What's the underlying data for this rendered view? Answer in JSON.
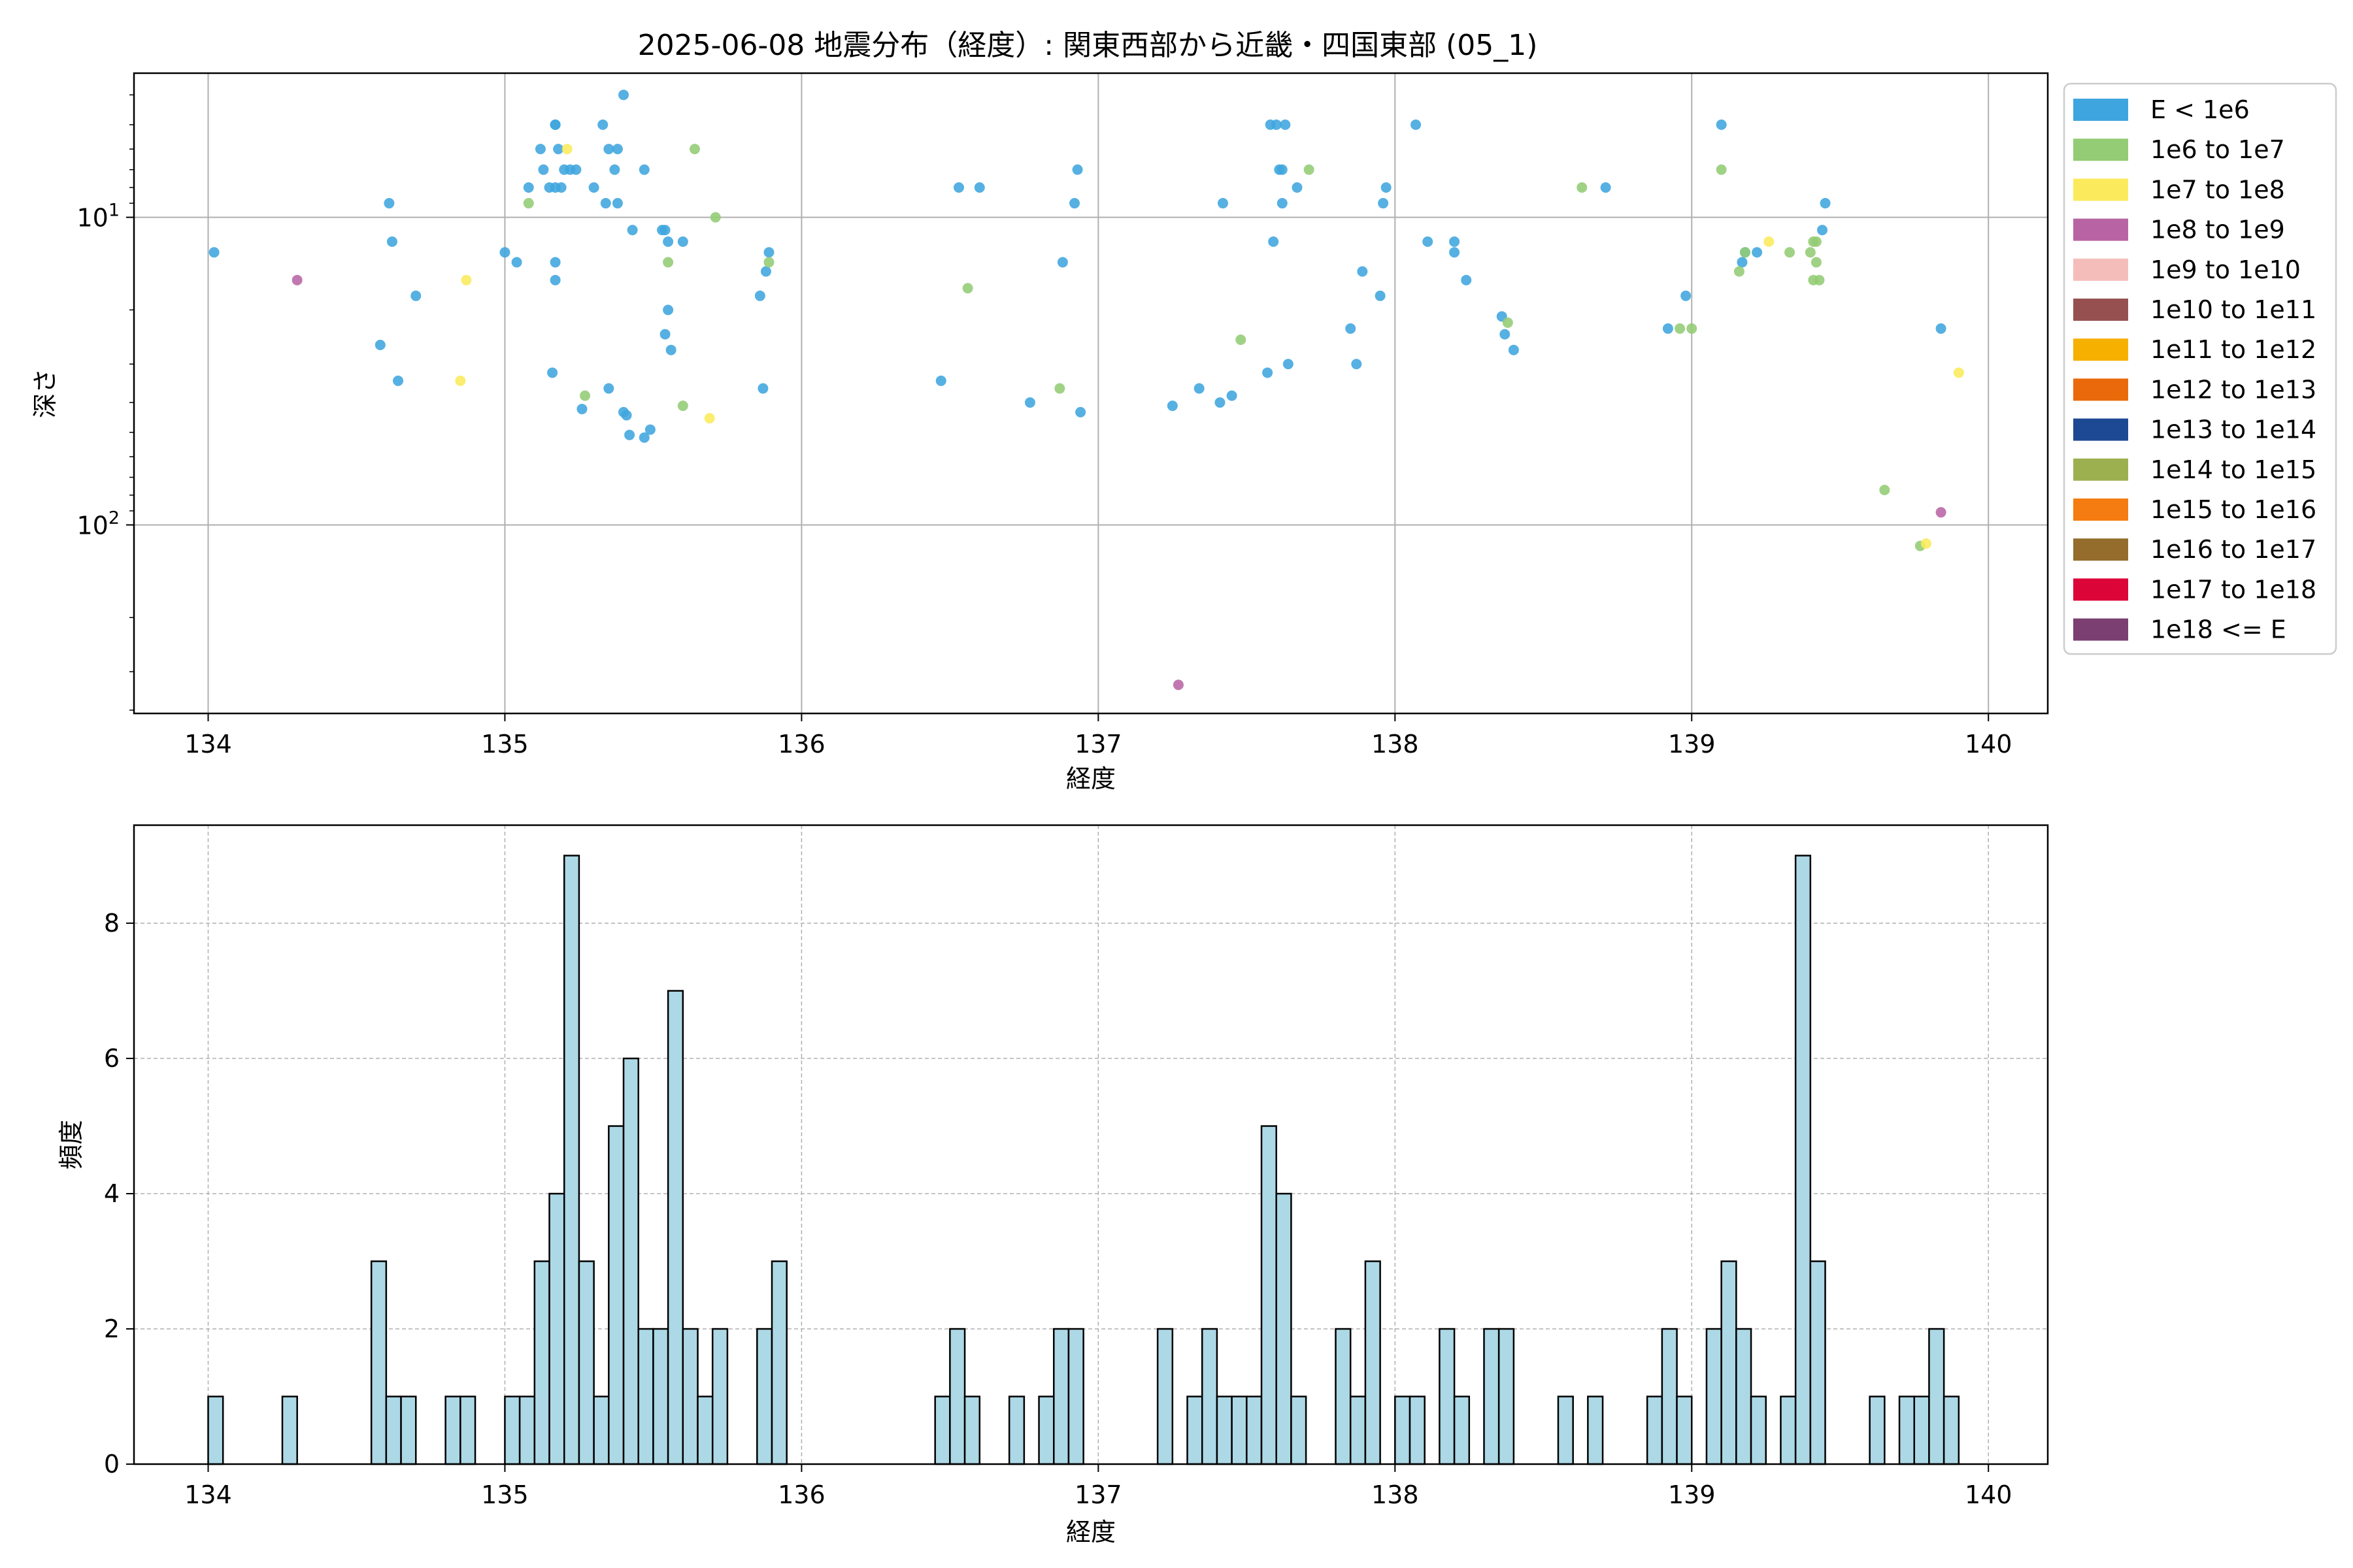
{
  "figure": {
    "title": "2025-06-08 地震分布（経度）: 関東西部から近畿・四国東部 (05_1)"
  },
  "chart_data": [
    {
      "type": "scatter",
      "title": "2025-06-08 地震分布（経度）: 関東西部から近畿・四国東部 (05_1)",
      "xlabel": "経度",
      "ylabel": "深さ",
      "xlim": [
        133.75,
        140.2
      ],
      "ylim": [
        410,
        3.4
      ],
      "yscale": "log",
      "y_inverted": true,
      "x_ticks": [
        "134",
        "135",
        "136",
        "137",
        "138",
        "139",
        "140"
      ],
      "y_ticks": [
        "10^1",
        "10^2"
      ],
      "grid": true,
      "legend_position": "outside-right",
      "legend": [
        {
          "label": "E < 1e6",
          "color": "#3fa5de"
        },
        {
          "label": "1e6 to 1e7",
          "color": "#93cc74"
        },
        {
          "label": "1e7 to 1e8",
          "color": "#fbeb5c"
        },
        {
          "label": "1e8 to 1e9",
          "color": "#b864a4"
        },
        {
          "label": "1e9 to 1e10",
          "color": "#f4bdba"
        },
        {
          "label": "1e10 to 1e11",
          "color": "#965050"
        },
        {
          "label": "1e11 to 1e12",
          "color": "#f6b000"
        },
        {
          "label": "1e12 to 1e13",
          "color": "#ea6a0b"
        },
        {
          "label": "1e13 to 1e14",
          "color": "#1d4893"
        },
        {
          "label": "1e14 to 1e15",
          "color": "#9cb050"
        },
        {
          "label": "1e15 to 1e16",
          "color": "#f47c10"
        },
        {
          "label": "1e16 to 1e17",
          "color": "#946c2c"
        },
        {
          "label": "1e17 to 1e18",
          "color": "#dc0538"
        },
        {
          "label": "1e18 <= E",
          "color": "#7b3f71"
        }
      ],
      "series": [
        {
          "name": "E < 1e6",
          "points": [
            [
              134.02,
              13
            ],
            [
              134.58,
              26
            ],
            [
              134.61,
              9
            ],
            [
              134.62,
              12
            ],
            [
              134.64,
              34
            ],
            [
              134.7,
              18
            ],
            [
              135.0,
              13
            ],
            [
              135.04,
              14
            ],
            [
              135.08,
              8
            ],
            [
              135.12,
              6
            ],
            [
              135.13,
              7
            ],
            [
              135.15,
              8
            ],
            [
              135.16,
              32
            ],
            [
              135.17,
              5
            ],
            [
              135.17,
              5
            ],
            [
              135.17,
              8
            ],
            [
              135.17,
              14
            ],
            [
              135.17,
              16
            ],
            [
              135.18,
              6
            ],
            [
              135.19,
              8
            ],
            [
              135.2,
              7
            ],
            [
              135.22,
              7
            ],
            [
              135.24,
              7
            ],
            [
              135.26,
              42
            ],
            [
              135.3,
              8
            ],
            [
              135.33,
              5
            ],
            [
              135.34,
              9
            ],
            [
              135.35,
              36
            ],
            [
              135.35,
              6
            ],
            [
              135.37,
              7
            ],
            [
              135.38,
              9
            ],
            [
              135.38,
              6
            ],
            [
              135.4,
              4
            ],
            [
              135.4,
              43
            ],
            [
              135.41,
              44
            ],
            [
              135.42,
              51
            ],
            [
              135.43,
              11
            ],
            [
              135.47,
              7
            ],
            [
              135.47,
              52
            ],
            [
              135.49,
              49
            ],
            [
              135.53,
              11
            ],
            [
              135.54,
              11
            ],
            [
              135.54,
              24
            ],
            [
              135.55,
              12
            ],
            [
              135.55,
              20
            ],
            [
              135.56,
              27
            ],
            [
              135.6,
              12
            ],
            [
              135.86,
              18
            ],
            [
              135.87,
              36
            ],
            [
              135.88,
              15
            ],
            [
              135.89,
              13
            ],
            [
              136.47,
              34
            ],
            [
              136.53,
              8
            ],
            [
              136.6,
              8
            ],
            [
              136.77,
              40
            ],
            [
              136.88,
              14
            ],
            [
              136.92,
              9
            ],
            [
              136.93,
              7
            ],
            [
              136.94,
              43
            ],
            [
              137.25,
              41
            ],
            [
              137.34,
              36
            ],
            [
              137.41,
              40
            ],
            [
              137.42,
              9
            ],
            [
              137.45,
              38
            ],
            [
              137.57,
              32
            ],
            [
              137.58,
              5
            ],
            [
              137.59,
              12
            ],
            [
              137.6,
              5
            ],
            [
              137.61,
              7
            ],
            [
              137.62,
              7
            ],
            [
              137.62,
              9
            ],
            [
              137.63,
              5
            ],
            [
              137.64,
              30
            ],
            [
              137.67,
              8
            ],
            [
              137.85,
              23
            ],
            [
              137.87,
              30
            ],
            [
              137.89,
              15
            ],
            [
              137.95,
              18
            ],
            [
              137.96,
              9
            ],
            [
              137.97,
              8
            ],
            [
              138.07,
              5
            ],
            [
              138.11,
              12
            ],
            [
              138.2,
              12
            ],
            [
              138.2,
              13
            ],
            [
              138.24,
              16
            ],
            [
              138.36,
              21
            ],
            [
              138.37,
              24
            ],
            [
              138.4,
              27
            ],
            [
              138.71,
              8
            ],
            [
              138.92,
              23
            ],
            [
              138.98,
              18
            ],
            [
              139.1,
              5
            ],
            [
              139.17,
              14
            ],
            [
              139.18,
              13
            ],
            [
              139.22,
              13
            ],
            [
              139.44,
              11
            ],
            [
              139.45,
              9
            ],
            [
              139.84,
              23
            ]
          ]
        },
        {
          "name": "1e6 to 1e7",
          "points": [
            [
              135.08,
              9
            ],
            [
              135.27,
              38
            ],
            [
              135.55,
              14
            ],
            [
              135.6,
              41
            ],
            [
              135.64,
              6
            ],
            [
              135.71,
              10
            ],
            [
              135.89,
              14
            ],
            [
              136.56,
              17
            ],
            [
              136.87,
              36
            ],
            [
              137.48,
              25
            ],
            [
              137.71,
              7
            ],
            [
              138.38,
              22
            ],
            [
              138.63,
              8
            ],
            [
              138.96,
              23
            ],
            [
              139.0,
              23
            ],
            [
              139.1,
              7
            ],
            [
              139.16,
              15
            ],
            [
              139.18,
              13
            ],
            [
              139.33,
              13
            ],
            [
              139.4,
              13
            ],
            [
              139.41,
              16
            ],
            [
              139.41,
              12
            ],
            [
              139.42,
              12
            ],
            [
              139.42,
              14
            ],
            [
              139.43,
              16
            ],
            [
              139.65,
              77
            ],
            [
              139.77,
              117
            ]
          ]
        },
        {
          "name": "1e7 to 1e8",
          "points": [
            [
              134.85,
              34
            ],
            [
              134.87,
              16
            ],
            [
              135.21,
              6
            ],
            [
              135.69,
              45
            ],
            [
              139.26,
              12
            ],
            [
              139.79,
              115
            ],
            [
              139.9,
              32
            ]
          ]
        },
        {
          "name": "1e8 to 1e9",
          "points": [
            [
              134.3,
              16
            ],
            [
              137.27,
              331
            ],
            [
              139.84,
              91
            ]
          ]
        }
      ]
    },
    {
      "type": "bar",
      "title": "",
      "xlabel": "経度",
      "ylabel": "頻度",
      "xlim": [
        133.75,
        140.2
      ],
      "ylim": [
        0,
        9.45
      ],
      "x_ticks": [
        "134",
        "135",
        "136",
        "137",
        "138",
        "139",
        "140"
      ],
      "y_ticks": [
        "0",
        "2",
        "4",
        "6",
        "8"
      ],
      "grid": true,
      "bar_color": "#add8e6",
      "edge_color": "#000000",
      "bin_width": 0.05,
      "bins": [
        [
          134.0,
          1
        ],
        [
          134.25,
          1
        ],
        [
          134.55,
          3
        ],
        [
          134.6,
          1
        ],
        [
          134.65,
          1
        ],
        [
          134.8,
          1
        ],
        [
          134.85,
          1
        ],
        [
          135.0,
          1
        ],
        [
          135.05,
          1
        ],
        [
          135.1,
          3
        ],
        [
          135.15,
          4
        ],
        [
          135.2,
          9
        ],
        [
          135.25,
          3
        ],
        [
          135.3,
          1
        ],
        [
          135.35,
          5
        ],
        [
          135.4,
          6
        ],
        [
          135.45,
          2
        ],
        [
          135.5,
          2
        ],
        [
          135.55,
          7
        ],
        [
          135.6,
          2
        ],
        [
          135.65,
          1
        ],
        [
          135.7,
          2
        ],
        [
          135.85,
          2
        ],
        [
          135.9,
          3
        ],
        [
          136.45,
          1
        ],
        [
          136.5,
          2
        ],
        [
          136.55,
          1
        ],
        [
          136.7,
          1
        ],
        [
          136.8,
          1
        ],
        [
          136.85,
          2
        ],
        [
          136.9,
          2
        ],
        [
          137.2,
          2
        ],
        [
          137.3,
          1
        ],
        [
          137.35,
          2
        ],
        [
          137.4,
          1
        ],
        [
          137.45,
          1
        ],
        [
          137.5,
          1
        ],
        [
          137.55,
          5
        ],
        [
          137.6,
          4
        ],
        [
          137.65,
          1
        ],
        [
          137.8,
          2
        ],
        [
          137.85,
          1
        ],
        [
          137.9,
          3
        ],
        [
          138.0,
          1
        ],
        [
          138.05,
          1
        ],
        [
          138.15,
          2
        ],
        [
          138.2,
          1
        ],
        [
          138.3,
          2
        ],
        [
          138.35,
          2
        ],
        [
          138.55,
          1
        ],
        [
          138.65,
          1
        ],
        [
          138.85,
          1
        ],
        [
          138.9,
          2
        ],
        [
          138.95,
          1
        ],
        [
          139.05,
          2
        ],
        [
          139.1,
          3
        ],
        [
          139.15,
          2
        ],
        [
          139.2,
          1
        ],
        [
          139.3,
          1
        ],
        [
          139.35,
          9
        ],
        [
          139.4,
          3
        ],
        [
          139.6,
          1
        ],
        [
          139.7,
          1
        ],
        [
          139.75,
          1
        ],
        [
          139.8,
          2
        ],
        [
          139.85,
          1
        ]
      ]
    }
  ]
}
